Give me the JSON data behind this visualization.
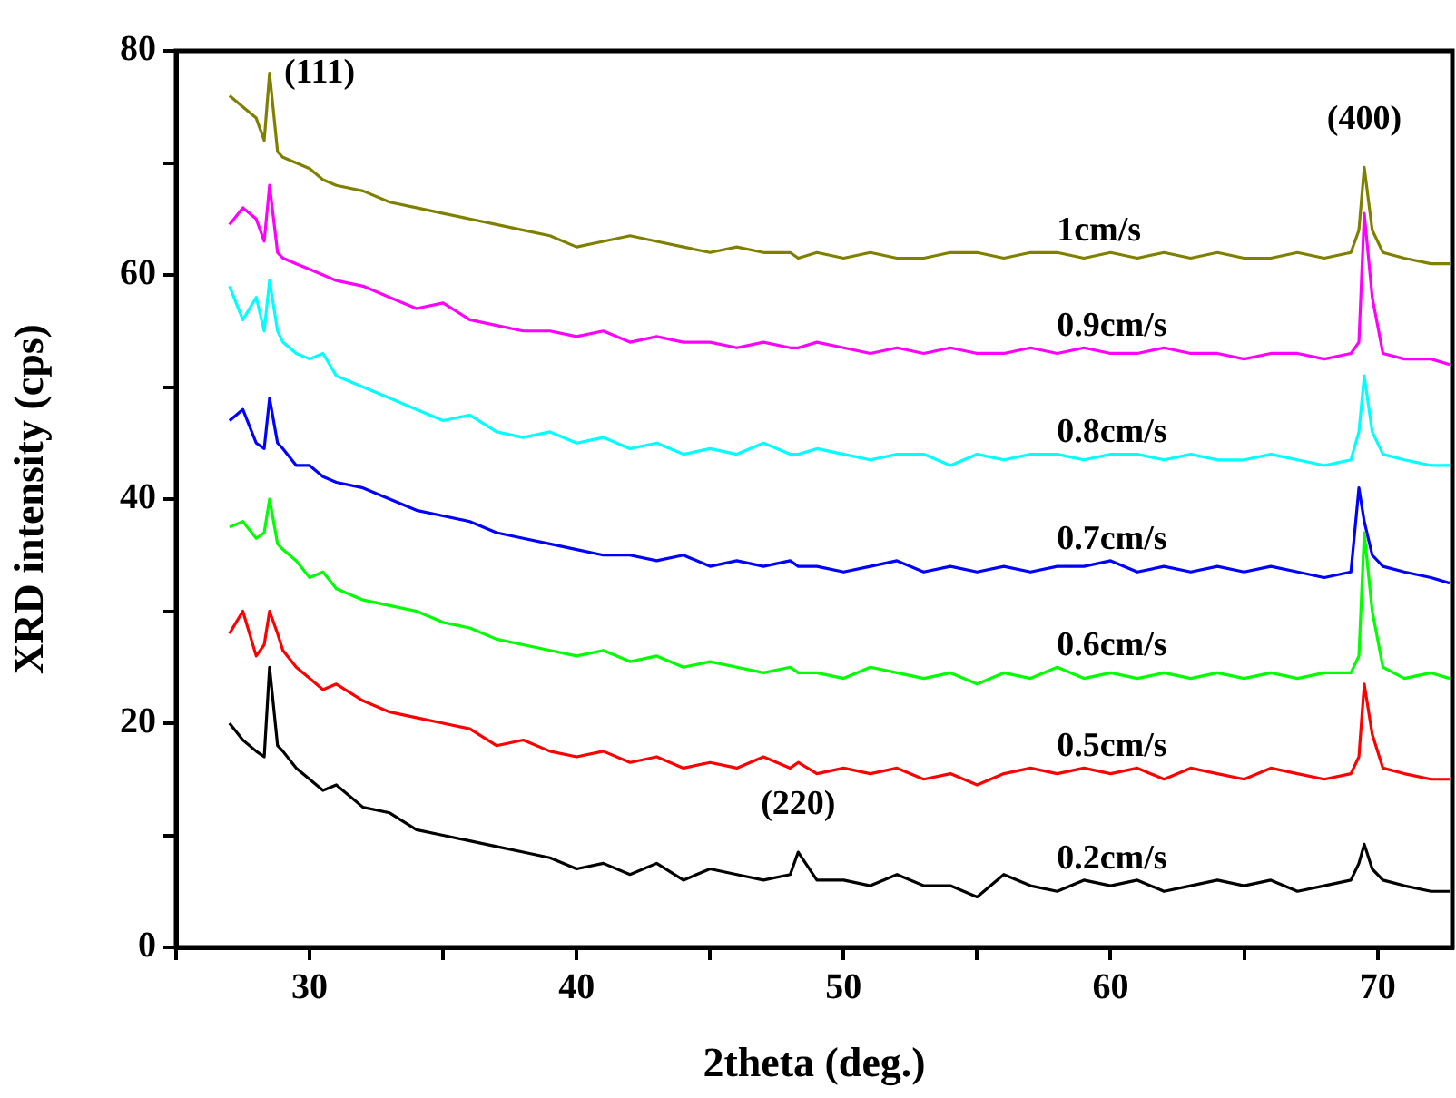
{
  "chart_data": {
    "type": "line",
    "xlabel": "2theta (deg.)",
    "ylabel": "XRD intensity (cps)",
    "xlim": [
      25,
      72.8
    ],
    "xticks": [
      {
        "value": 25,
        "label": null
      },
      30,
      {
        "value": 35,
        "label": null
      },
      40,
      {
        "value": 45,
        "label": null
      },
      50,
      {
        "value": 55,
        "label": null
      },
      60,
      {
        "value": 65,
        "label": null
      },
      70
    ],
    "ylim": [
      0,
      80
    ],
    "yticks": [
      0,
      {
        "value": 10,
        "label": null
      },
      20,
      {
        "value": 30,
        "label": null
      },
      40,
      {
        "value": 50,
        "label": null
      },
      60,
      {
        "value": 70,
        "label": null
      },
      80
    ],
    "grid": false,
    "legend": false,
    "marker": "none",
    "line_style": "solid",
    "x": [
      27,
      27.5,
      28,
      28.3,
      28.5,
      28.8,
      29,
      29.5,
      30,
      30.5,
      31,
      32,
      33,
      34,
      35,
      36,
      37,
      38,
      39,
      40,
      41,
      42,
      43,
      44,
      45,
      46,
      47,
      48,
      48.3,
      49,
      50,
      51,
      52,
      53,
      54,
      55,
      56,
      57,
      58,
      59,
      60,
      61,
      62,
      63,
      64,
      65,
      66,
      67,
      68,
      69,
      69.3,
      69.5,
      69.8,
      70.2,
      71,
      72,
      72.7
    ],
    "series": [
      {
        "name": "0.2cm/s",
        "color": "#000000",
        "values": [
          20,
          18.5,
          17.5,
          17,
          25,
          18,
          17.5,
          16,
          15,
          14,
          14.5,
          12.5,
          12,
          10.5,
          10,
          9.5,
          9,
          8.5,
          8,
          7,
          7.5,
          6.5,
          7.5,
          6,
          7,
          6.5,
          6,
          6.5,
          8.5,
          6,
          6,
          5.5,
          6.5,
          5.5,
          5.5,
          4.5,
          6.5,
          5.5,
          5,
          6,
          5.5,
          6,
          5,
          5.5,
          6,
          5.5,
          6,
          5,
          5.5,
          6,
          7.5,
          9.2,
          7,
          6,
          5.5,
          5,
          5
        ]
      },
      {
        "name": "0.5cm/s",
        "color": "#ff0000",
        "values": [
          28,
          30,
          26,
          27,
          30,
          28,
          26.5,
          25,
          24,
          23,
          23.5,
          22,
          21,
          20.5,
          20,
          19.5,
          18,
          18.5,
          17.5,
          17,
          17.5,
          16.5,
          17,
          16,
          16.5,
          16,
          17,
          16,
          16.5,
          15.5,
          16,
          15.5,
          16,
          15,
          15.5,
          14.5,
          15.5,
          16,
          15.5,
          16,
          15.5,
          16,
          15,
          16,
          15.5,
          15,
          16,
          15.5,
          15,
          15.5,
          17,
          23.5,
          19,
          16,
          15.5,
          15,
          15
        ]
      },
      {
        "name": "0.6cm/s",
        "color": "#00ff00",
        "values": [
          37.5,
          38,
          36.5,
          37,
          40,
          36,
          35.5,
          34.5,
          33,
          33.5,
          32,
          31,
          30.5,
          30,
          29,
          28.5,
          27.5,
          27,
          26.5,
          26,
          26.5,
          25.5,
          26,
          25,
          25.5,
          25,
          24.5,
          25,
          24.5,
          24.5,
          24,
          25,
          24.5,
          24,
          24.5,
          23.5,
          24.5,
          24,
          25,
          24,
          24.5,
          24,
          24.5,
          24,
          24.5,
          24,
          24.5,
          24,
          24.5,
          24.5,
          26,
          37,
          30,
          25,
          24,
          24.5,
          24
        ]
      },
      {
        "name": "0.7cm/s",
        "color": "#0000ff",
        "values": [
          47,
          48,
          45,
          44.5,
          49,
          45,
          44.5,
          43,
          43,
          42,
          41.5,
          41,
          40,
          39,
          38.5,
          38,
          37,
          36.5,
          36,
          35.5,
          35,
          35,
          34.5,
          35,
          34,
          34.5,
          34,
          34.5,
          34,
          34,
          33.5,
          34,
          34.5,
          33.5,
          34,
          33.5,
          34,
          33.5,
          34,
          34,
          34.5,
          33.5,
          34,
          33.5,
          34,
          33.5,
          34,
          33.5,
          33,
          33.5,
          41,
          38,
          35,
          34,
          33.5,
          33,
          32.5
        ]
      },
      {
        "name": "0.8cm/s",
        "color": "#00ffff",
        "values": [
          59,
          56,
          58,
          55,
          59.5,
          55,
          54,
          53,
          52.5,
          53,
          51,
          50,
          49,
          48,
          47,
          47.5,
          46,
          45.5,
          46,
          45,
          45.5,
          44.5,
          45,
          44,
          44.5,
          44,
          45,
          44,
          44,
          44.5,
          44,
          43.5,
          44,
          44,
          43,
          44,
          43.5,
          44,
          44,
          43.5,
          44,
          44,
          43.5,
          44,
          43.5,
          43.5,
          44,
          43.5,
          43,
          43.5,
          46,
          51,
          46,
          44,
          43.5,
          43,
          43
        ]
      },
      {
        "name": "0.9cm/s",
        "color": "#ff00ff",
        "values": [
          64.5,
          66,
          65,
          63,
          68,
          62,
          61.5,
          61,
          60.5,
          60,
          59.5,
          59,
          58,
          57,
          57.5,
          56,
          55.5,
          55,
          55,
          54.5,
          55,
          54,
          54.5,
          54,
          54,
          53.5,
          54,
          53.5,
          53.5,
          54,
          53.5,
          53,
          53.5,
          53,
          53.5,
          53,
          53,
          53.5,
          53,
          53.5,
          53,
          53,
          53.5,
          53,
          53,
          52.5,
          53,
          53,
          52.5,
          53,
          54,
          65.5,
          58,
          53,
          52.5,
          52.5,
          52
        ]
      },
      {
        "name": "1cm/s",
        "color": "#808000",
        "values": [
          76,
          75,
          74,
          72,
          78,
          71,
          70.5,
          70,
          69.5,
          68.5,
          68,
          67.5,
          66.5,
          66,
          65.5,
          65,
          64.5,
          64,
          63.5,
          62.5,
          63,
          63.5,
          63,
          62.5,
          62,
          62.5,
          62,
          62,
          61.5,
          62,
          61.5,
          62,
          61.5,
          61.5,
          62,
          62,
          61.5,
          62,
          62,
          61.5,
          62,
          61.5,
          62,
          61.5,
          62,
          61.5,
          61.5,
          62,
          61.5,
          62,
          64,
          69.6,
          64,
          62,
          61.5,
          61,
          61
        ]
      }
    ],
    "annotations": [
      {
        "text": "(111)",
        "x": 28.5,
        "y": 78
      },
      {
        "text": "(400)",
        "x": 69.5,
        "y": 69.6
      },
      {
        "text": "(220)",
        "x": 48.3,
        "y": 8.5
      }
    ]
  }
}
